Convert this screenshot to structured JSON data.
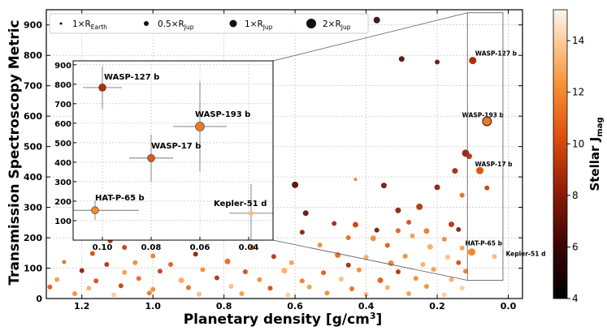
{
  "chart_data": {
    "type": "scatter",
    "xlabel": "Planetary density [g/cm",
    "xlabel_sup": "3",
    "xlabel_tail": "]",
    "ylabel": "Transmission Spectroscopy Metric",
    "x_reversed": true,
    "xlim": [
      1.3,
      -0.04
    ],
    "ylim": [
      0,
      950
    ],
    "xticks": [
      {
        "v": 1.2,
        "label": "1.2"
      },
      {
        "v": 1.0,
        "label": "1.0"
      },
      {
        "v": 0.8,
        "label": "0.8"
      },
      {
        "v": 0.6,
        "label": "0.6"
      },
      {
        "v": 0.4,
        "label": "0.4"
      },
      {
        "v": 0.2,
        "label": "0.2"
      },
      {
        "v": 0.0,
        "label": "0.0"
      }
    ],
    "yticks": [
      {
        "v": 0,
        "label": "0"
      },
      {
        "v": 100,
        "label": "100"
      },
      {
        "v": 200,
        "label": "200"
      },
      {
        "v": 300,
        "label": "300"
      },
      {
        "v": 400,
        "label": "400"
      },
      {
        "v": 500,
        "label": "500"
      },
      {
        "v": 600,
        "label": "600"
      },
      {
        "v": 700,
        "label": "700"
      },
      {
        "v": 800,
        "label": "800"
      },
      {
        "v": 900,
        "label": "900"
      }
    ],
    "colorbar": {
      "label": "Stellar J",
      "label_sub": "mag",
      "range": [
        4,
        15.2
      ],
      "ticks": [
        {
          "v": 4,
          "label": "4"
        },
        {
          "v": 6,
          "label": "6"
        },
        {
          "v": 8,
          "label": "8"
        },
        {
          "v": 10,
          "label": "10"
        },
        {
          "v": 12,
          "label": "12"
        },
        {
          "v": 14,
          "label": "14"
        }
      ]
    },
    "legend": {
      "placement": "top",
      "items": [
        {
          "label": "1×R",
          "sub": "Earth",
          "r": 1.5
        },
        {
          "label": "0.5×R",
          "sub": "Jup",
          "r": 3
        },
        {
          "label": "1×R",
          "sub": "Jup",
          "r": 4.5
        },
        {
          "label": "2×R",
          "sub": "Jup",
          "r": 6
        }
      ]
    },
    "highlighted": [
      {
        "name": "WASP-127 b",
        "x": 0.1,
        "y": 783,
        "xerr": 0.008,
        "yerr": 110,
        "r": 4.5,
        "jmag": 9.0
      },
      {
        "name": "WASP-193 b",
        "x": 0.06,
        "y": 583,
        "xerr": 0.011,
        "yerr": 230,
        "r": 5.5,
        "jmag": 11.5
      },
      {
        "name": "WASP-17 b",
        "x": 0.08,
        "y": 421,
        "xerr": 0.009,
        "yerr": 120,
        "r": 4.5,
        "jmag": 10.5
      },
      {
        "name": "HAT-P-65 b",
        "x": 0.103,
        "y": 153,
        "xerr": 0.018,
        "yerr": 50,
        "r": 4.5,
        "jmag": 12.0
      },
      {
        "name": "Kepler-51 d",
        "x": 0.039,
        "y": 138,
        "xerr": 0.009,
        "yerr": 150,
        "r": 3,
        "jmag": 13.5
      }
    ],
    "points": [
      {
        "x": 0.37,
        "y": 916,
        "r": 4,
        "jmag": 6.0
      },
      {
        "x": 0.3,
        "y": 788,
        "r": 3.5,
        "jmag": 6.5
      },
      {
        "x": 0.2,
        "y": 778,
        "r": 3,
        "jmag": 7.0
      },
      {
        "x": 0.12,
        "y": 478,
        "r": 4.5,
        "jmag": 8.0
      },
      {
        "x": 0.11,
        "y": 468,
        "r": 3.5,
        "jmag": 9.0
      },
      {
        "x": 0.15,
        "y": 420,
        "r": 3.5,
        "jmag": 8.5
      },
      {
        "x": 0.43,
        "y": 392,
        "r": 2,
        "jmag": 11.5
      },
      {
        "x": 0.6,
        "y": 374,
        "r": 4,
        "jmag": 6.5
      },
      {
        "x": 0.35,
        "y": 372,
        "r": 3.5,
        "jmag": 7.5
      },
      {
        "x": 0.2,
        "y": 366,
        "r": 3.5,
        "jmag": 8.0
      },
      {
        "x": 0.06,
        "y": 364,
        "r": 3,
        "jmag": 9.5
      },
      {
        "x": 0.13,
        "y": 340,
        "r": 3,
        "jmag": 11.0
      },
      {
        "x": 0.88,
        "y": 280,
        "r": 3.5,
        "jmag": 6.0
      },
      {
        "x": 0.31,
        "y": 290,
        "r": 3.5,
        "jmag": 8.0
      },
      {
        "x": 0.25,
        "y": 302,
        "r": 4,
        "jmag": 9.0
      },
      {
        "x": 0.57,
        "y": 281,
        "r": 3.5,
        "jmag": 7.0
      },
      {
        "x": 0.49,
        "y": 247,
        "r": 3,
        "jmag": 8.5
      },
      {
        "x": 0.43,
        "y": 243,
        "r": 3.5,
        "jmag": 9.5
      },
      {
        "x": 0.28,
        "y": 251,
        "r": 3,
        "jmag": 10.0
      },
      {
        "x": 0.37,
        "y": 225,
        "r": 3,
        "jmag": 7.5
      },
      {
        "x": 0.31,
        "y": 223,
        "r": 3,
        "jmag": 10.5
      },
      {
        "x": 0.23,
        "y": 222,
        "r": 3.5,
        "jmag": 11.5
      },
      {
        "x": 0.16,
        "y": 244,
        "r": 3.5,
        "jmag": 9.0
      },
      {
        "x": 0.14,
        "y": 227,
        "r": 3,
        "jmag": 8.0
      },
      {
        "x": 0.58,
        "y": 218,
        "r": 3,
        "jmag": 8.0
      },
      {
        "x": 0.82,
        "y": 208,
        "r": 3,
        "jmag": 10.0
      },
      {
        "x": 0.68,
        "y": 212,
        "r": 3,
        "jmag": 9.0
      },
      {
        "x": 0.45,
        "y": 200,
        "r": 3,
        "jmag": 11.0
      },
      {
        "x": 0.38,
        "y": 198,
        "r": 3.5,
        "jmag": 12.0
      },
      {
        "x": 0.27,
        "y": 206,
        "r": 3,
        "jmag": 12.5
      },
      {
        "x": 0.18,
        "y": 195,
        "r": 3,
        "jmag": 12.0
      },
      {
        "x": 1.12,
        "y": 190,
        "r": 3,
        "jmag": 8.5
      },
      {
        "x": 1.08,
        "y": 168,
        "r": 3,
        "jmag": 9.5
      },
      {
        "x": 0.72,
        "y": 168,
        "r": 3,
        "jmag": 10.5
      },
      {
        "x": 0.53,
        "y": 176,
        "r": 3,
        "jmag": 12.0
      },
      {
        "x": 0.34,
        "y": 175,
        "r": 3,
        "jmag": 10.5
      },
      {
        "x": 0.22,
        "y": 170,
        "r": 3.5,
        "jmag": 13.0
      },
      {
        "x": 0.13,
        "y": 166,
        "r": 3,
        "jmag": 12.5
      },
      {
        "x": 1.17,
        "y": 148,
        "r": 3,
        "jmag": 10.0
      },
      {
        "x": 1.0,
        "y": 140,
        "r": 3,
        "jmag": 11.5
      },
      {
        "x": 0.88,
        "y": 146,
        "r": 3,
        "jmag": 8.0
      },
      {
        "x": 0.66,
        "y": 138,
        "r": 3,
        "jmag": 9.0
      },
      {
        "x": 0.48,
        "y": 143,
        "r": 3.5,
        "jmag": 11.0
      },
      {
        "x": 0.4,
        "y": 136,
        "r": 3,
        "jmag": 13.0
      },
      {
        "x": 0.29,
        "y": 139,
        "r": 3,
        "jmag": 12.0
      },
      {
        "x": 0.17,
        "y": 136,
        "r": 3,
        "jmag": 13.5
      },
      {
        "x": 1.25,
        "y": 120,
        "r": 2.5,
        "jmag": 11.0
      },
      {
        "x": 1.13,
        "y": 112,
        "r": 3,
        "jmag": 9.0
      },
      {
        "x": 1.05,
        "y": 118,
        "r": 3,
        "jmag": 12.0
      },
      {
        "x": 0.95,
        "y": 112,
        "r": 3,
        "jmag": 10.5
      },
      {
        "x": 0.79,
        "y": 122,
        "r": 3.5,
        "jmag": 11.0
      },
      {
        "x": 0.61,
        "y": 118,
        "r": 3,
        "jmag": 12.5
      },
      {
        "x": 0.45,
        "y": 110,
        "r": 3,
        "jmag": 8.5
      },
      {
        "x": 0.33,
        "y": 116,
        "r": 3.5,
        "jmag": 11.5
      },
      {
        "x": 0.24,
        "y": 112,
        "r": 3,
        "jmag": 13.0
      },
      {
        "x": 0.14,
        "y": 118,
        "r": 3,
        "jmag": 10.0
      },
      {
        "x": 1.2,
        "y": 92,
        "r": 3,
        "jmag": 8.0
      },
      {
        "x": 1.08,
        "y": 86,
        "r": 3,
        "jmag": 12.5
      },
      {
        "x": 0.98,
        "y": 90,
        "r": 3,
        "jmag": 9.5
      },
      {
        "x": 0.86,
        "y": 95,
        "r": 3,
        "jmag": 12.0
      },
      {
        "x": 0.74,
        "y": 88,
        "r": 3,
        "jmag": 10.0
      },
      {
        "x": 0.63,
        "y": 92,
        "r": 3.5,
        "jmag": 13.0
      },
      {
        "x": 0.52,
        "y": 85,
        "r": 3,
        "jmag": 10.5
      },
      {
        "x": 0.42,
        "y": 94,
        "r": 3,
        "jmag": 12.0
      },
      {
        "x": 0.31,
        "y": 88,
        "r": 3,
        "jmag": 9.0
      },
      {
        "x": 0.21,
        "y": 96,
        "r": 3,
        "jmag": 12.5
      },
      {
        "x": 0.12,
        "y": 90,
        "r": 3,
        "jmag": 11.5
      },
      {
        "x": 1.27,
        "y": 62,
        "r": 3,
        "jmag": 12.5
      },
      {
        "x": 1.16,
        "y": 58,
        "r": 3,
        "jmag": 10.0
      },
      {
        "x": 1.04,
        "y": 66,
        "r": 3,
        "jmag": 11.0
      },
      {
        "x": 0.92,
        "y": 60,
        "r": 3.5,
        "jmag": 13.0
      },
      {
        "x": 0.82,
        "y": 68,
        "r": 3,
        "jmag": 9.0
      },
      {
        "x": 0.7,
        "y": 62,
        "r": 3,
        "jmag": 12.0
      },
      {
        "x": 0.58,
        "y": 58,
        "r": 3,
        "jmag": 11.5
      },
      {
        "x": 0.47,
        "y": 64,
        "r": 3,
        "jmag": 13.5
      },
      {
        "x": 0.36,
        "y": 60,
        "r": 3.5,
        "jmag": 10.5
      },
      {
        "x": 0.26,
        "y": 66,
        "r": 3,
        "jmag": 12.0
      },
      {
        "x": 0.16,
        "y": 62,
        "r": 3,
        "jmag": 13.0
      },
      {
        "x": 1.29,
        "y": 38,
        "r": 3,
        "jmag": 10.5
      },
      {
        "x": 1.18,
        "y": 34,
        "r": 3,
        "jmag": 13.0
      },
      {
        "x": 1.09,
        "y": 42,
        "r": 3,
        "jmag": 9.5
      },
      {
        "x": 1.0,
        "y": 30,
        "r": 3,
        "jmag": 12.0
      },
      {
        "x": 0.9,
        "y": 36,
        "r": 3,
        "jmag": 11.0
      },
      {
        "x": 0.78,
        "y": 40,
        "r": 3,
        "jmag": 13.5
      },
      {
        "x": 0.67,
        "y": 34,
        "r": 3,
        "jmag": 10.0
      },
      {
        "x": 0.56,
        "y": 38,
        "r": 3,
        "jmag": 12.5
      },
      {
        "x": 0.44,
        "y": 32,
        "r": 3,
        "jmag": 11.0
      },
      {
        "x": 0.34,
        "y": 36,
        "r": 3,
        "jmag": 13.0
      },
      {
        "x": 0.23,
        "y": 40,
        "r": 3,
        "jmag": 12.0
      },
      {
        "x": 0.13,
        "y": 34,
        "r": 3,
        "jmag": 14.0
      },
      {
        "x": 1.22,
        "y": 16,
        "r": 3,
        "jmag": 12.0
      },
      {
        "x": 1.11,
        "y": 12,
        "r": 3,
        "jmag": 14.0
      },
      {
        "x": 1.01,
        "y": 18,
        "r": 3,
        "jmag": 11.5
      },
      {
        "x": 0.87,
        "y": 14,
        "r": 3,
        "jmag": 13.5
      },
      {
        "x": 0.75,
        "y": 16,
        "r": 3,
        "jmag": 12.5
      },
      {
        "x": 0.62,
        "y": 12,
        "r": 3,
        "jmag": 14.0
      },
      {
        "x": 0.51,
        "y": 18,
        "r": 3,
        "jmag": 12.0
      },
      {
        "x": 0.4,
        "y": 14,
        "r": 3,
        "jmag": 13.5
      },
      {
        "x": 0.28,
        "y": 16,
        "r": 3,
        "jmag": 12.5
      },
      {
        "x": 0.18,
        "y": 12,
        "r": 3,
        "jmag": 14.0
      }
    ],
    "inset": {
      "xlim": [
        0.112,
        0.03
      ],
      "ylim": [
        0,
        920
      ],
      "xticks": [
        {
          "v": 0.1,
          "label": "0.10"
        },
        {
          "v": 0.08,
          "label": "0.08"
        },
        {
          "v": 0.06,
          "label": "0.06"
        },
        {
          "v": 0.04,
          "label": "0.04"
        }
      ],
      "yticks": [
        {
          "v": 100,
          "label": "100"
        },
        {
          "v": 200,
          "label": "200"
        },
        {
          "v": 300,
          "label": "300"
        },
        {
          "v": 400,
          "label": "400"
        },
        {
          "v": 500,
          "label": "500"
        },
        {
          "v": 600,
          "label": "600"
        },
        {
          "v": 700,
          "label": "700"
        },
        {
          "v": 800,
          "label": "800"
        },
        {
          "v": 900,
          "label": "900"
        }
      ],
      "zoom_box": {
        "x0": 0.115,
        "x1": 0.015,
        "y0": 60,
        "y1": 940
      }
    }
  }
}
